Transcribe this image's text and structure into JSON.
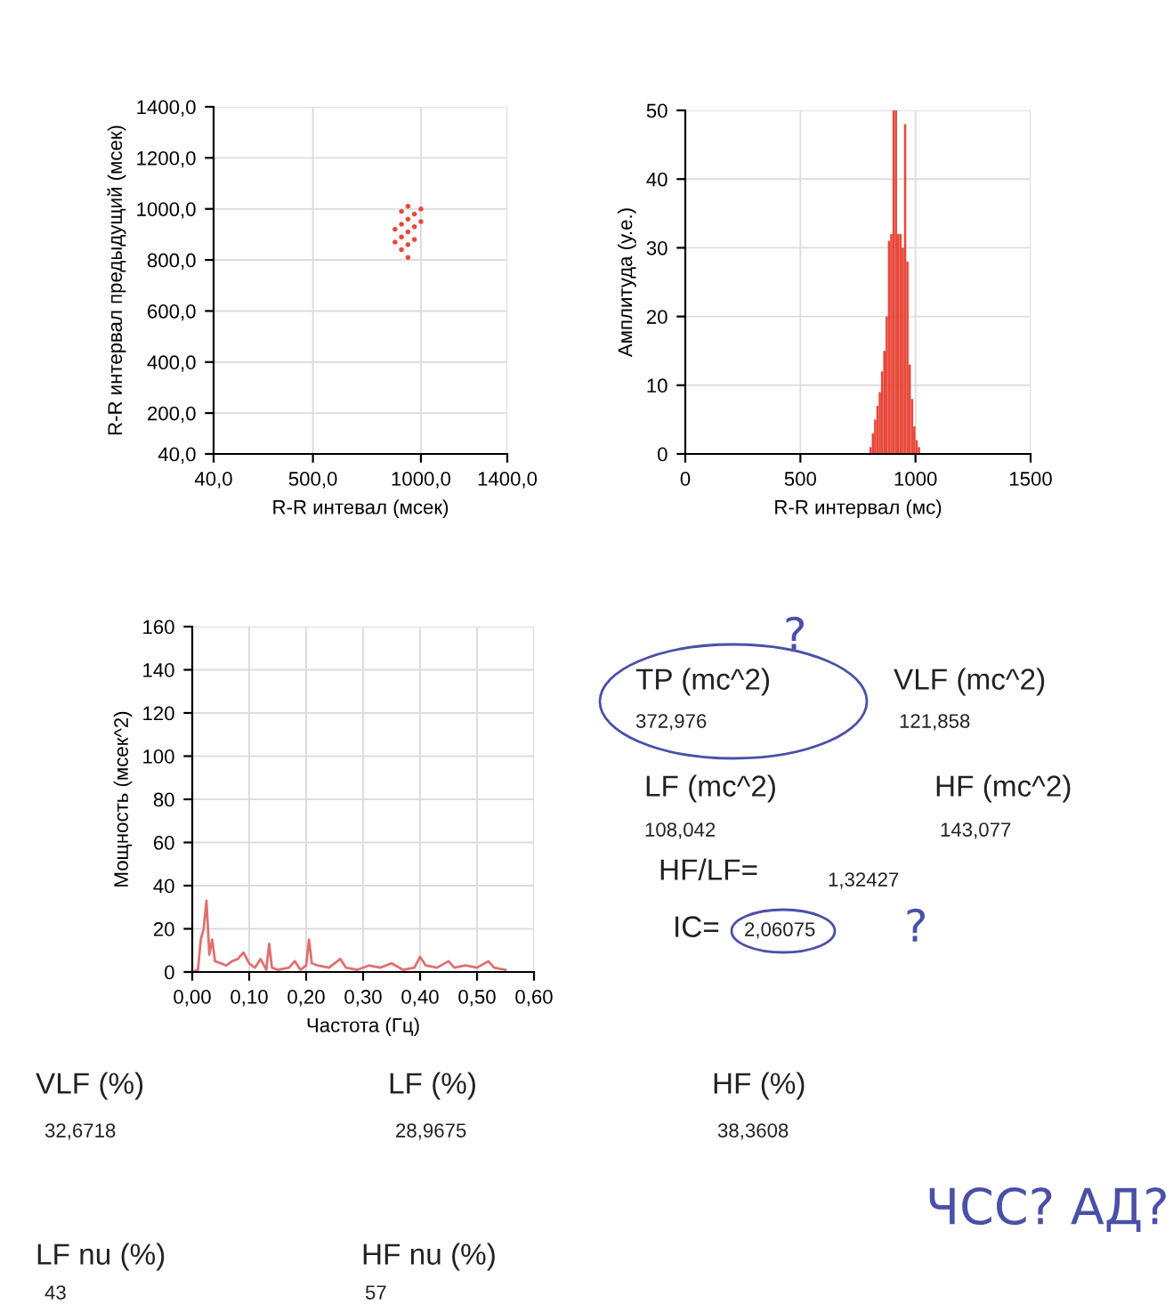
{
  "chart_data": [
    {
      "type": "scatter",
      "xlabel": "R-R интевал (мсек)",
      "ylabel": "R-R интервал предыдущий (мсек)",
      "color": "#e8483a",
      "marker": "circle",
      "grid": true,
      "x": [
        880,
        880,
        910,
        910,
        910,
        910,
        940,
        940,
        940,
        940,
        940,
        970,
        970,
        970,
        1000,
        1000
      ],
      "values": [
        870,
        920,
        840,
        890,
        940,
        990,
        860,
        910,
        960,
        1010,
        810,
        880,
        930,
        980,
        950,
        1000
      ],
      "xlim": [
        40,
        1400
      ],
      "xticks": [
        {
          "value": 40,
          "label": "40,0"
        },
        {
          "value": 500,
          "label": "500,0"
        },
        {
          "value": 1000,
          "label": "1000,0"
        },
        {
          "value": 1400,
          "label": "1400,0"
        }
      ],
      "ylim": [
        40,
        1400
      ],
      "yticks": [
        {
          "value": 40,
          "label": "40,0"
        },
        {
          "value": 200,
          "label": "200,0"
        },
        {
          "value": 400,
          "label": "400,0"
        },
        {
          "value": 600,
          "label": "600,0"
        },
        {
          "value": 800,
          "label": "800,0"
        },
        {
          "value": 1000,
          "label": "1000,0"
        },
        {
          "value": 1200,
          "label": "1200,0"
        },
        {
          "value": 1400,
          "label": "1400,0"
        }
      ]
    },
    {
      "type": "histogram",
      "xlabel": "R-R интервал (мс)",
      "ylabel": "Амплитуда (у.е.)",
      "color": "#e8483a",
      "grid": true,
      "bins": [
        800,
        810,
        820,
        830,
        840,
        850,
        860,
        870,
        880,
        890,
        900,
        910,
        920,
        930,
        940,
        950,
        960,
        970,
        980,
        990,
        1000,
        1010,
        1020
      ],
      "values": [
        1,
        3,
        5,
        7,
        9,
        12,
        15,
        20,
        31,
        32,
        50,
        50,
        32,
        32,
        30,
        48,
        28,
        13,
        8,
        4,
        2,
        1
      ],
      "xlim": [
        0,
        1500
      ],
      "xticks": [
        0,
        500,
        1000,
        1500
      ],
      "ylim": [
        0,
        50
      ],
      "yticks": [
        0,
        10,
        20,
        30,
        40,
        50
      ]
    },
    {
      "type": "line",
      "xlabel": "Частота (Гц)",
      "ylabel": "Мощность (мсек^2)",
      "color": "#e07070",
      "grid": true,
      "x": [
        0,
        0.01,
        0.015,
        0.02,
        0.025,
        0.03,
        0.035,
        0.04,
        0.05,
        0.06,
        0.07,
        0.08,
        0.09,
        0.1,
        0.11,
        0.12,
        0.13,
        0.135,
        0.14,
        0.15,
        0.17,
        0.18,
        0.19,
        0.2,
        0.205,
        0.21,
        0.22,
        0.24,
        0.26,
        0.27,
        0.29,
        0.31,
        0.33,
        0.35,
        0.37,
        0.39,
        0.4,
        0.41,
        0.43,
        0.45,
        0.46,
        0.48,
        0.5,
        0.52,
        0.53,
        0.55
      ],
      "values": [
        0,
        1,
        15,
        20,
        33,
        8,
        15,
        5,
        4,
        3,
        5,
        6,
        9,
        4,
        2,
        6,
        1,
        13,
        2,
        1,
        2,
        5,
        1,
        3,
        15,
        4,
        3,
        2,
        6,
        2,
        1,
        3,
        2,
        4,
        1,
        2,
        7,
        3,
        2,
        5,
        2,
        3,
        2,
        5,
        2,
        1
      ],
      "xlim": [
        0,
        0.6
      ],
      "xticks": [
        {
          "value": 0,
          "label": "0,00"
        },
        {
          "value": 0.1,
          "label": "0,10"
        },
        {
          "value": 0.2,
          "label": "0,20"
        },
        {
          "value": 0.3,
          "label": "0,30"
        },
        {
          "value": 0.4,
          "label": "0,40"
        },
        {
          "value": 0.5,
          "label": "0,50"
        },
        {
          "value": 0.6,
          "label": "0,60"
        }
      ],
      "ylim": [
        0,
        160
      ],
      "yticks": [
        0,
        20,
        40,
        60,
        80,
        100,
        120,
        140,
        160
      ]
    },
    {
      "type": "other",
      "annotations": [
        "TP (mc^2)",
        "372,976",
        "VLF (mc^2)",
        "121,858",
        "LF (mc^2)",
        "108,042",
        "HF (mc^2)",
        "143,077",
        "HF/LF=",
        "1,32427",
        "IC=",
        "2,06075",
        "VLF (%)",
        "32,6718",
        "LF (%)",
        "28,9675",
        "HF (%)",
        "38,3608",
        "LF nu (%)",
        "43",
        "HF nu (%)",
        "57",
        "?",
        "?",
        "ЧСС? АД?"
      ]
    }
  ]
}
